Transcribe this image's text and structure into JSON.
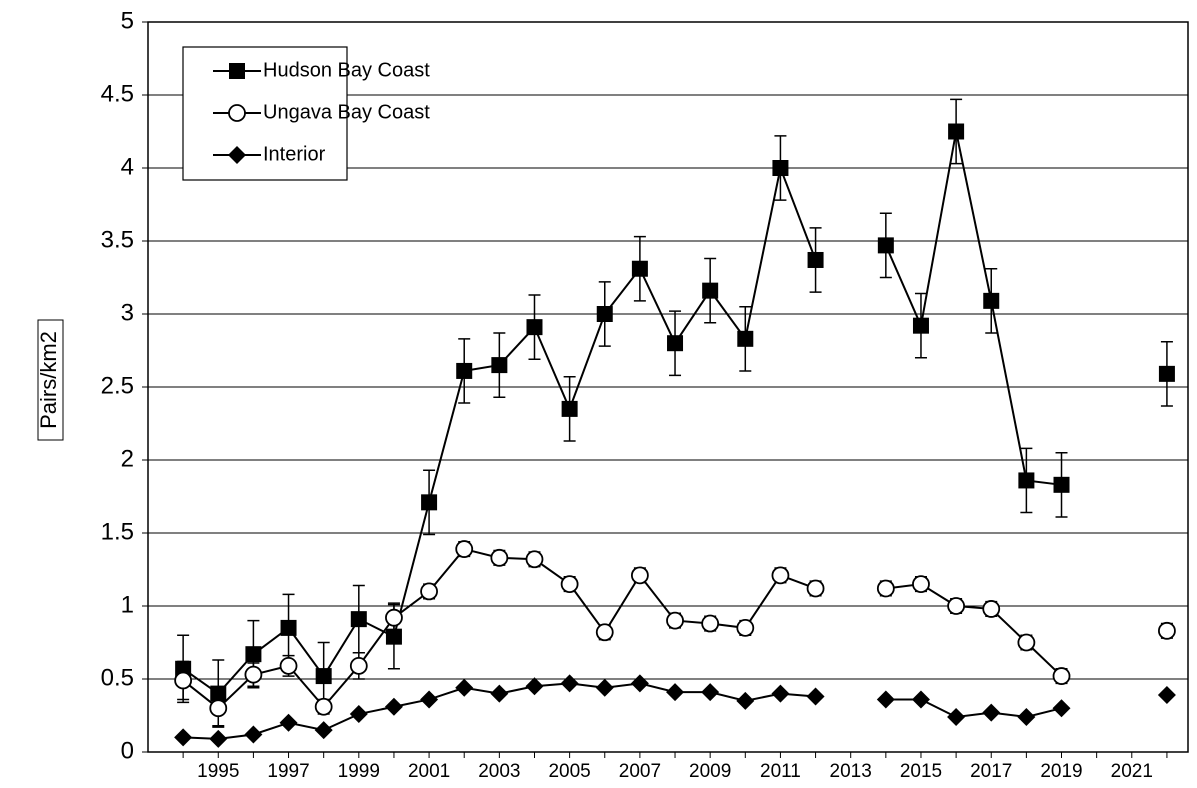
{
  "chart_data": {
    "type": "line",
    "y_label": "Pairs/km2",
    "x": [
      1994,
      1995,
      1996,
      1997,
      1998,
      1999,
      2000,
      2001,
      2002,
      2003,
      2004,
      2005,
      2006,
      2007,
      2008,
      2009,
      2010,
      2011,
      2012,
      2013,
      2014,
      2015,
      2016,
      2017,
      2018,
      2019,
      2020,
      2021,
      2022
    ],
    "xlim": [
      1993,
      2022.6
    ],
    "xticks": [
      1995,
      1997,
      1999,
      2001,
      2003,
      2005,
      2007,
      2009,
      2011,
      2013,
      2015,
      2017,
      2019,
      2021
    ],
    "ylim": [
      0,
      5
    ],
    "yticks": [
      0,
      0.5,
      1,
      1.5,
      2,
      2.5,
      3,
      3.5,
      4,
      4.5,
      5
    ],
    "grid": true,
    "legend": "upper left",
    "series": [
      {
        "name": "Hudson Bay Coast",
        "color": "#000000",
        "marker": "square",
        "values": [
          0.57,
          0.4,
          0.67,
          0.85,
          0.52,
          0.91,
          0.79,
          1.71,
          2.61,
          2.65,
          2.91,
          2.35,
          3.0,
          3.31,
          2.8,
          3.16,
          2.83,
          4.0,
          3.37,
          null,
          3.47,
          2.92,
          4.25,
          3.09,
          1.86,
          1.83,
          null,
          null,
          2.59
        ],
        "errors": [
          0.23,
          0.23,
          0.23,
          0.23,
          0.23,
          0.23,
          0.22,
          0.22,
          0.22,
          0.22,
          0.22,
          0.22,
          0.22,
          0.22,
          0.22,
          0.22,
          0.22,
          0.22,
          0.22,
          null,
          0.22,
          0.22,
          0.22,
          0.22,
          0.22,
          0.22,
          null,
          null,
          0.22
        ]
      },
      {
        "name": "Ungava Bay Coast",
        "color": "#000000",
        "marker": "circle",
        "values": [
          0.49,
          0.3,
          0.53,
          0.59,
          0.31,
          0.59,
          0.92,
          1.1,
          1.39,
          1.33,
          1.32,
          1.15,
          0.82,
          1.21,
          0.9,
          0.88,
          0.85,
          1.21,
          1.12,
          null,
          1.12,
          1.15,
          1.0,
          0.98,
          0.75,
          0.52,
          null,
          null,
          0.83
        ],
        "errors": [
          0.13,
          0.12,
          0.08,
          0.07,
          0.05,
          0.09,
          0.1,
          0.05,
          0.05,
          0.05,
          0.05,
          0.05,
          0.05,
          0.05,
          0.05,
          0.05,
          0.05,
          0.05,
          0.05,
          null,
          0.05,
          0.05,
          0.05,
          0.05,
          0.05,
          0.05,
          null,
          null,
          0.05
        ]
      },
      {
        "name": "Interior",
        "color": "#000000",
        "marker": "diamond",
        "values": [
          0.1,
          0.09,
          0.12,
          0.2,
          0.15,
          0.26,
          0.31,
          0.36,
          0.44,
          0.4,
          0.45,
          0.47,
          0.44,
          0.47,
          0.41,
          0.41,
          0.35,
          0.4,
          0.38,
          null,
          0.36,
          0.36,
          0.24,
          0.27,
          0.24,
          0.3,
          null,
          null,
          0.39
        ]
      }
    ]
  }
}
